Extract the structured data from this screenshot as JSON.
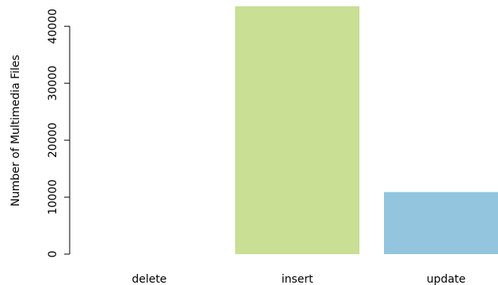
{
  "chart_data": {
    "type": "bar",
    "title": "",
    "xlabel": "",
    "ylabel": "Number of Multimedia Files",
    "categories": [
      "delete",
      "insert",
      "update"
    ],
    "values": [
      0,
      43500,
      10900
    ],
    "ylim": [
      0,
      43500
    ],
    "yticks": [
      0,
      10000,
      20000,
      30000,
      40000
    ],
    "yticks_labels": [
      "0",
      "10000",
      "20000",
      "30000",
      "40000"
    ],
    "colors": [
      "#ffffff",
      "#c8df94",
      "#93c5df"
    ],
    "grid": false,
    "legend": "none"
  }
}
